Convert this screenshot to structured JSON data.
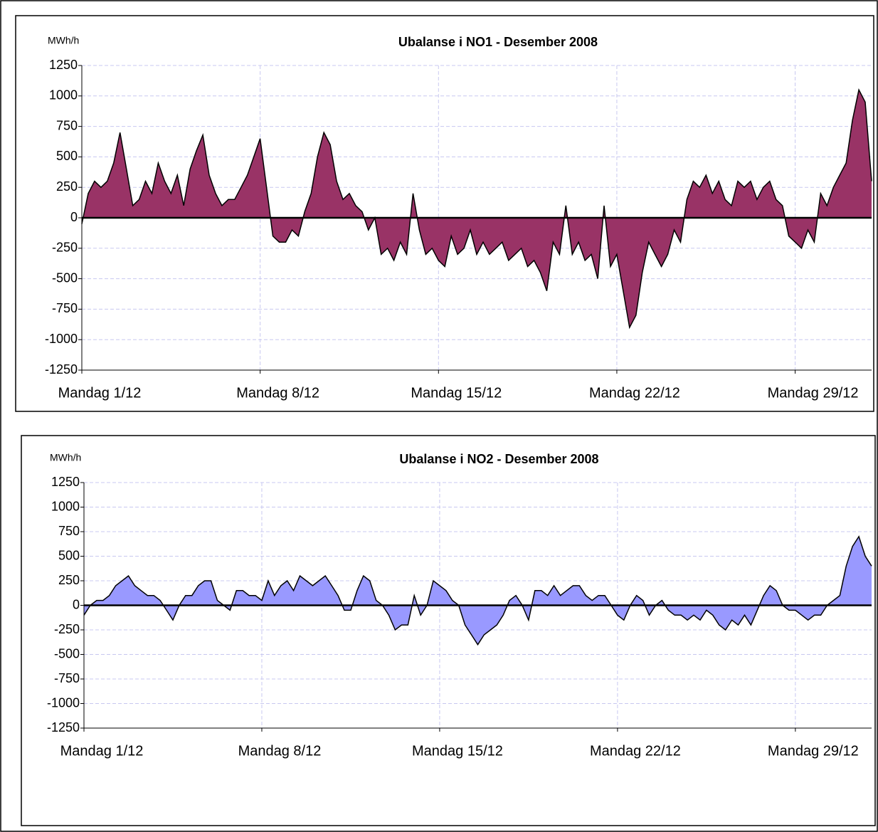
{
  "chart_data": [
    {
      "type": "area",
      "title": "Ubalanse i NO1 -  Desember  2008",
      "y_label": "MWh/h",
      "x": [
        0,
        0.25,
        0.5,
        0.75,
        1,
        1.25,
        1.5,
        1.75,
        2,
        2.25,
        2.5,
        2.75,
        3,
        3.25,
        3.5,
        3.75,
        4,
        4.25,
        4.5,
        4.75,
        5,
        5.25,
        5.5,
        5.75,
        6,
        6.25,
        6.5,
        6.75,
        7,
        7.25,
        7.5,
        7.75,
        8,
        8.25,
        8.5,
        8.75,
        9,
        9.25,
        9.5,
        9.75,
        10,
        10.25,
        10.5,
        10.75,
        11,
        11.25,
        11.5,
        11.75,
        12,
        12.25,
        12.5,
        12.75,
        13,
        13.25,
        13.5,
        13.75,
        14,
        14.25,
        14.5,
        14.75,
        15,
        15.25,
        15.5,
        15.75,
        16,
        16.25,
        16.5,
        16.75,
        17,
        17.25,
        17.5,
        17.75,
        18,
        18.25,
        18.5,
        18.75,
        19,
        19.25,
        19.5,
        19.75,
        20,
        20.25,
        20.5,
        20.75,
        21,
        21.25,
        21.5,
        21.75,
        22,
        22.25,
        22.5,
        22.75,
        23,
        23.25,
        23.5,
        23.75,
        24,
        24.25,
        24.5,
        24.75,
        25,
        25.25,
        25.5,
        25.75,
        26,
        26.25,
        26.5,
        26.75,
        27,
        27.25,
        27.5,
        27.75,
        28,
        28.25,
        28.5,
        28.75,
        29,
        29.25,
        29.5,
        29.75,
        30,
        30.25,
        30.5,
        30.75,
        31
      ],
      "series": [
        {
          "color": "#993366",
          "values": [
            -50,
            200,
            300,
            250,
            300,
            450,
            700,
            400,
            100,
            150,
            300,
            200,
            450,
            300,
            200,
            350,
            100,
            400,
            550,
            680,
            350,
            200,
            100,
            150,
            150,
            250,
            350,
            500,
            650,
            250,
            -150,
            -200,
            -200,
            -100,
            -150,
            50,
            200,
            500,
            700,
            600,
            300,
            150,
            200,
            100,
            50,
            -100,
            0,
            -300,
            -250,
            -350,
            -200,
            -300,
            200,
            -100,
            -300,
            -250,
            -350,
            -400,
            -150,
            -300,
            -250,
            -100,
            -300,
            -200,
            -300,
            -250,
            -200,
            -350,
            -300,
            -250,
            -400,
            -350,
            -450,
            -600,
            -200,
            -300,
            100,
            -300,
            -200,
            -350,
            -300,
            -500,
            100,
            -400,
            -300,
            -600,
            -900,
            -800,
            -450,
            -200,
            -300,
            -400,
            -300,
            -100,
            -200,
            150,
            300,
            250,
            350,
            200,
            300,
            150,
            100,
            300,
            250,
            300,
            150,
            250,
            300,
            150,
            100,
            -150,
            -200,
            -250,
            -100,
            -200,
            200,
            100,
            250,
            350,
            450,
            800,
            1050,
            950,
            300
          ]
        }
      ],
      "xlim": [
        0,
        31
      ],
      "xticks": [
        {
          "value": 0,
          "label": "Mandag 1/12"
        },
        {
          "value": 7,
          "label": "Mandag 8/12"
        },
        {
          "value": 14,
          "label": "Mandag 15/12"
        },
        {
          "value": 21,
          "label": "Mandag 22/12"
        },
        {
          "value": 28,
          "label": "Mandag 29/12"
        }
      ],
      "ylim": [
        -1250,
        1250
      ],
      "yticks": [
        -1250,
        -1000,
        -750,
        -500,
        -250,
        0,
        250,
        500,
        750,
        1000,
        1250
      ],
      "grid": true
    },
    {
      "type": "area",
      "title": "Ubalanse i NO2  - Desember 2008",
      "y_label": "MWh/h",
      "x": [
        0,
        0.25,
        0.5,
        0.75,
        1,
        1.25,
        1.5,
        1.75,
        2,
        2.25,
        2.5,
        2.75,
        3,
        3.25,
        3.5,
        3.75,
        4,
        4.25,
        4.5,
        4.75,
        5,
        5.25,
        5.5,
        5.75,
        6,
        6.25,
        6.5,
        6.75,
        7,
        7.25,
        7.5,
        7.75,
        8,
        8.25,
        8.5,
        8.75,
        9,
        9.25,
        9.5,
        9.75,
        10,
        10.25,
        10.5,
        10.75,
        11,
        11.25,
        11.5,
        11.75,
        12,
        12.25,
        12.5,
        12.75,
        13,
        13.25,
        13.5,
        13.75,
        14,
        14.25,
        14.5,
        14.75,
        15,
        15.25,
        15.5,
        15.75,
        16,
        16.25,
        16.5,
        16.75,
        17,
        17.25,
        17.5,
        17.75,
        18,
        18.25,
        18.5,
        18.75,
        19,
        19.25,
        19.5,
        19.75,
        20,
        20.25,
        20.5,
        20.75,
        21,
        21.25,
        21.5,
        21.75,
        22,
        22.25,
        22.5,
        22.75,
        23,
        23.25,
        23.5,
        23.75,
        24,
        24.25,
        24.5,
        24.75,
        25,
        25.25,
        25.5,
        25.75,
        26,
        26.25,
        26.5,
        26.75,
        27,
        27.25,
        27.5,
        27.75,
        28,
        28.25,
        28.5,
        28.75,
        29,
        29.25,
        29.5,
        29.75,
        30,
        30.25,
        30.5,
        30.75,
        31
      ],
      "series": [
        {
          "color": "#9999ff",
          "values": [
            -100,
            0,
            50,
            50,
            100,
            200,
            250,
            300,
            200,
            150,
            100,
            100,
            50,
            -50,
            -150,
            0,
            100,
            100,
            200,
            250,
            250,
            50,
            0,
            -50,
            150,
            150,
            100,
            100,
            50,
            250,
            100,
            200,
            250,
            150,
            300,
            250,
            200,
            250,
            300,
            200,
            100,
            -50,
            -50,
            150,
            300,
            250,
            50,
            0,
            -100,
            -250,
            -200,
            -200,
            100,
            -100,
            0,
            250,
            200,
            150,
            50,
            0,
            -200,
            -300,
            -400,
            -300,
            -250,
            -200,
            -100,
            50,
            100,
            0,
            -150,
            150,
            150,
            100,
            200,
            100,
            150,
            200,
            200,
            100,
            50,
            100,
            100,
            0,
            -100,
            -150,
            0,
            100,
            50,
            -100,
            0,
            50,
            -50,
            -100,
            -100,
            -150,
            -100,
            -150,
            -50,
            -100,
            -200,
            -250,
            -150,
            -200,
            -100,
            -200,
            -50,
            100,
            200,
            150,
            0,
            -50,
            -50,
            -100,
            -150,
            -100,
            -100,
            0,
            50,
            100,
            400,
            600,
            700,
            500,
            400
          ]
        }
      ],
      "xlim": [
        0,
        31
      ],
      "xticks": [
        {
          "value": 0,
          "label": "Mandag 1/12"
        },
        {
          "value": 7,
          "label": "Mandag 8/12"
        },
        {
          "value": 14,
          "label": "Mandag 15/12"
        },
        {
          "value": 21,
          "label": "Mandag 22/12"
        },
        {
          "value": 28,
          "label": "Mandag 29/12"
        }
      ],
      "ylim": [
        -1250,
        1250
      ],
      "yticks": [
        -1250,
        -1000,
        -750,
        -500,
        -250,
        0,
        250,
        500,
        750,
        1000,
        1250
      ],
      "grid": true
    }
  ]
}
